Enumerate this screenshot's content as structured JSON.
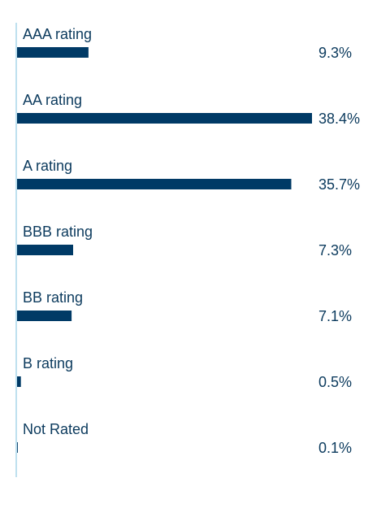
{
  "chart_data": {
    "type": "bar",
    "orientation": "horizontal",
    "categories": [
      "AAA rating",
      "AA rating",
      "A rating",
      "BBB rating",
      "BB rating",
      "B rating",
      "Not Rated"
    ],
    "values": [
      9.3,
      38.4,
      35.7,
      7.3,
      7.1,
      0.5,
      0.1
    ],
    "value_labels": [
      "9.3%",
      "38.4%",
      "35.7%",
      "7.3%",
      "7.1%",
      "0.5%",
      "0.1%"
    ],
    "xlim": [
      0,
      38.4
    ],
    "grid": false,
    "legend": "none",
    "colors": {
      "bar": "#003a66",
      "text": "#0b3a5d",
      "axis": "#a9d6ea"
    }
  }
}
